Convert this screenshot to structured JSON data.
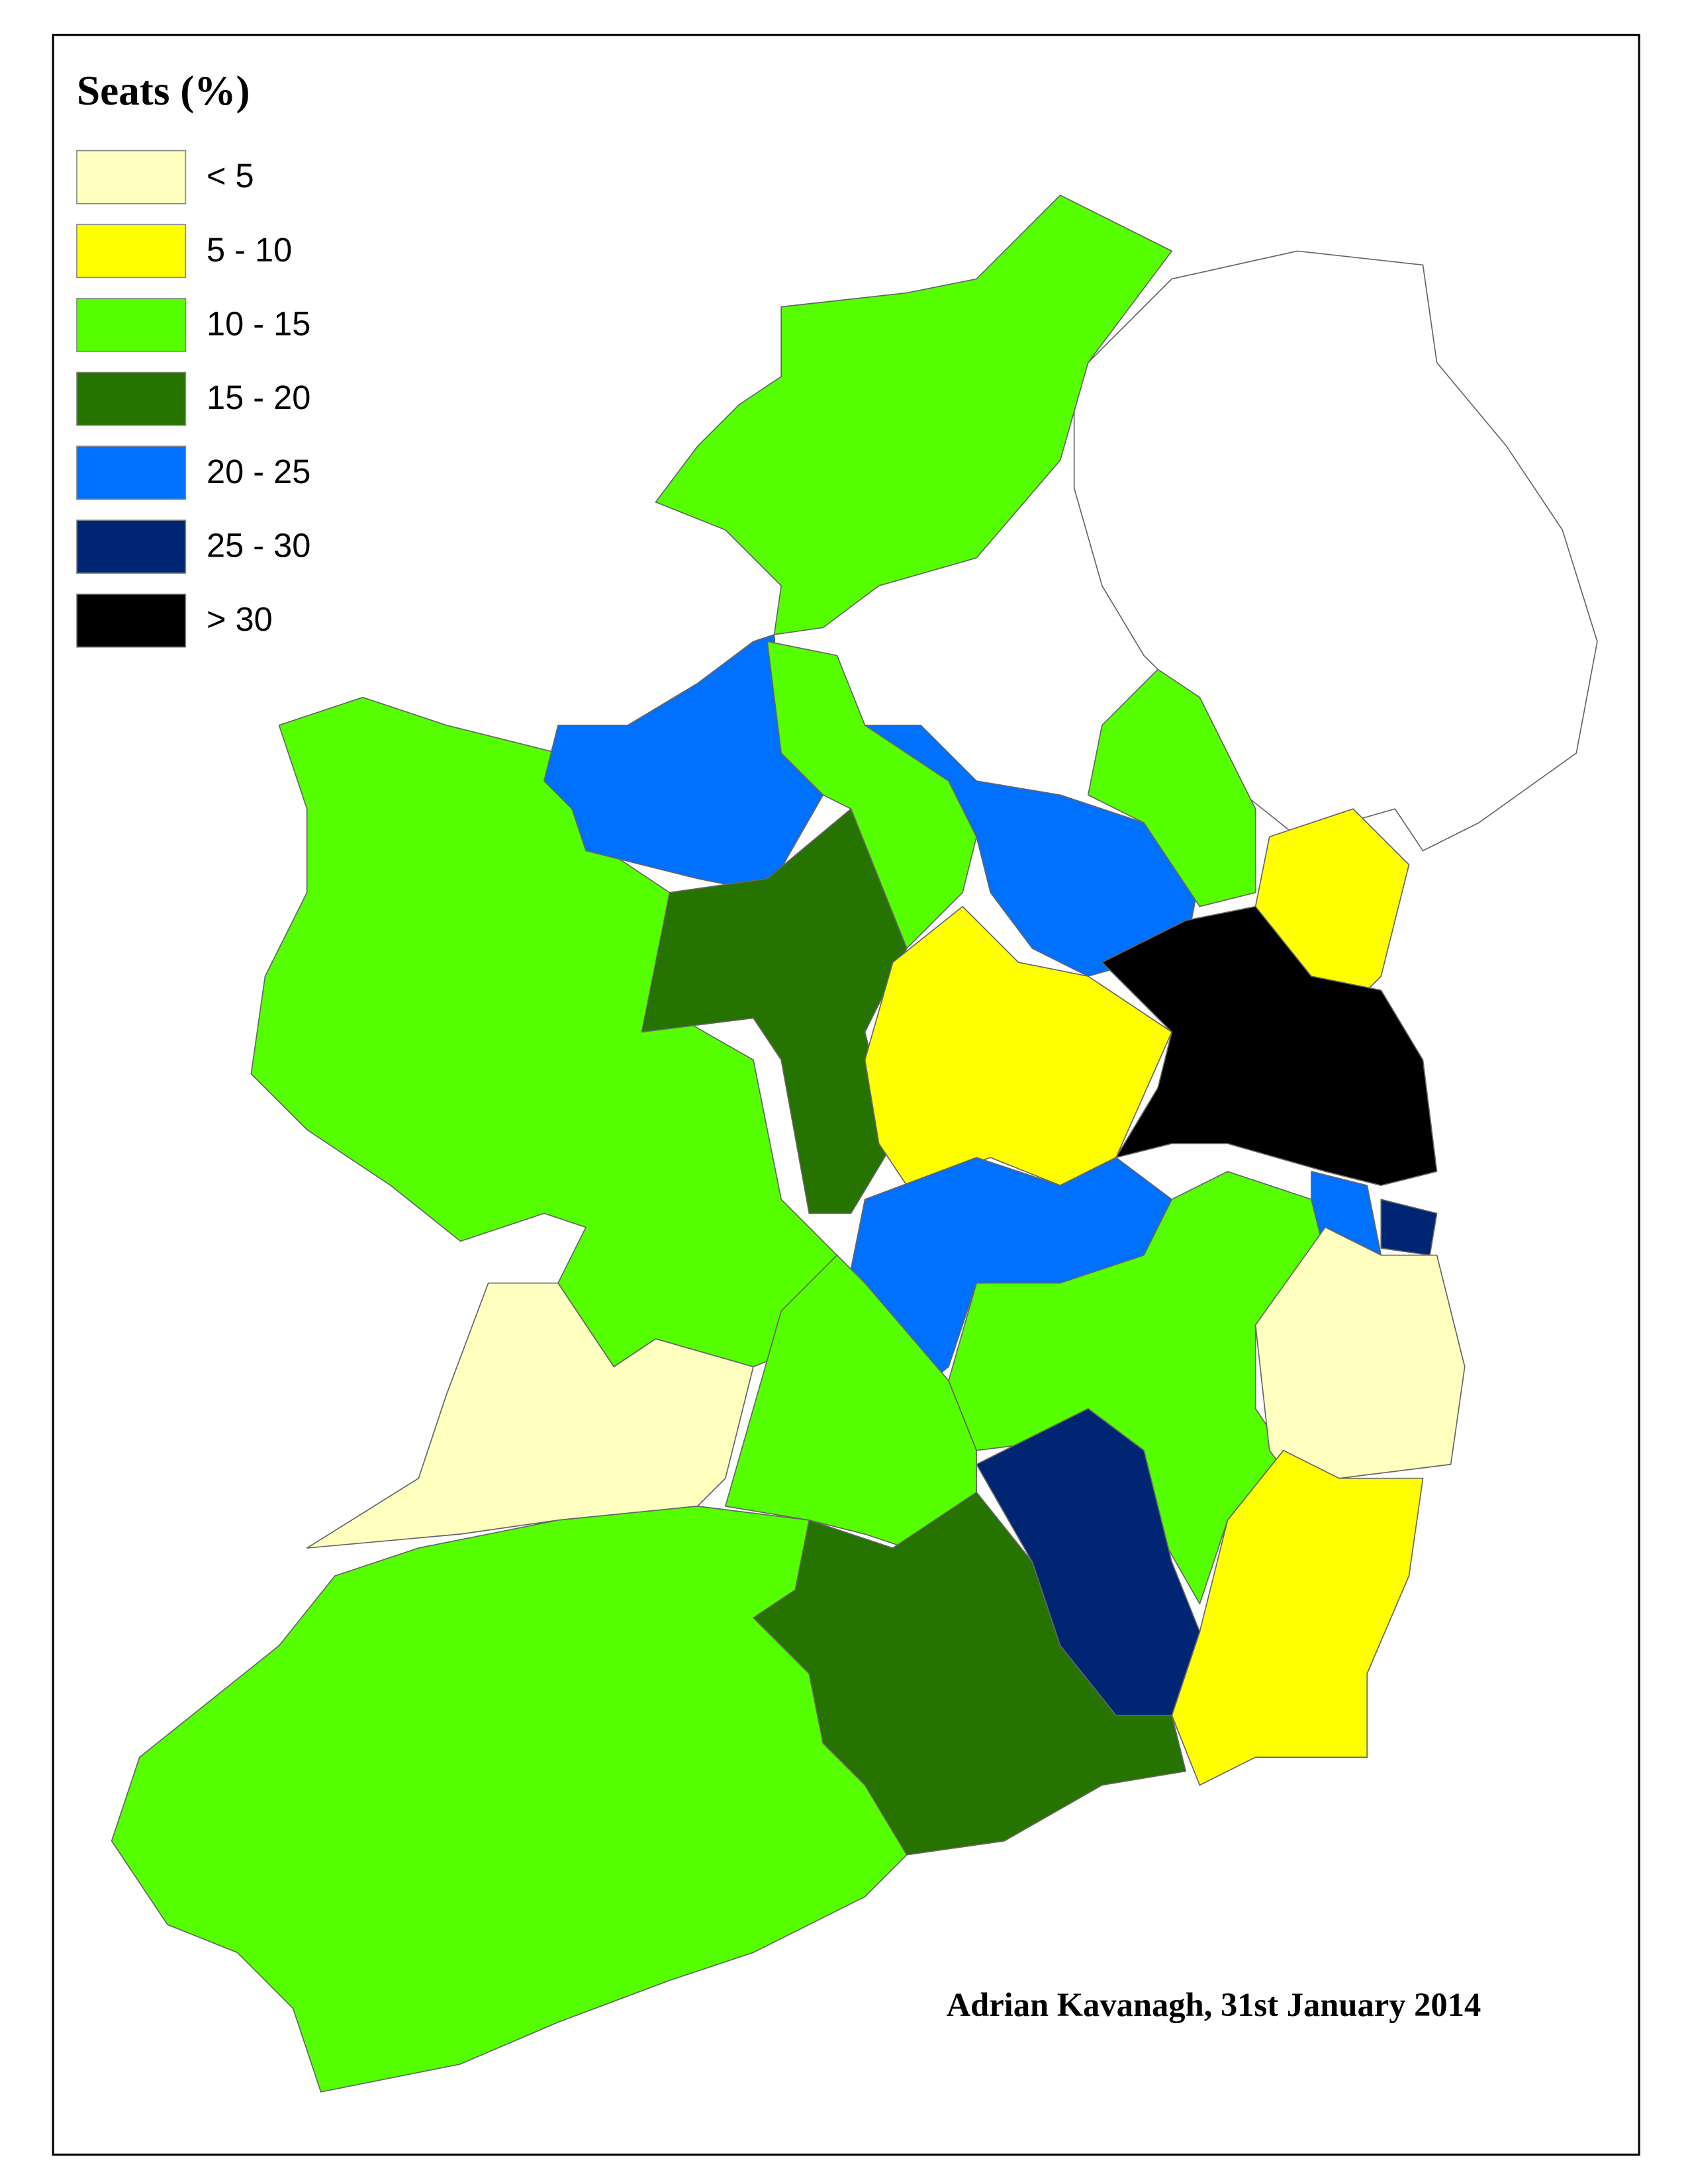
{
  "legend": {
    "title": "Seats (%)",
    "items": [
      {
        "label": "< 5",
        "color": "#ffffc0"
      },
      {
        "label": "5 - 10",
        "color": "#ffff00"
      },
      {
        "label": "10 - 15",
        "color": "#55ff00"
      },
      {
        "label": "15 - 20",
        "color": "#267300"
      },
      {
        "label": "20 - 25",
        "color": "#0070ff"
      },
      {
        "label": "25 - 30",
        "color": "#002673"
      },
      {
        "label": "> 30",
        "color": "#000000"
      }
    ]
  },
  "credit": "Adrian Kavanagh, 31st January 2014"
}
